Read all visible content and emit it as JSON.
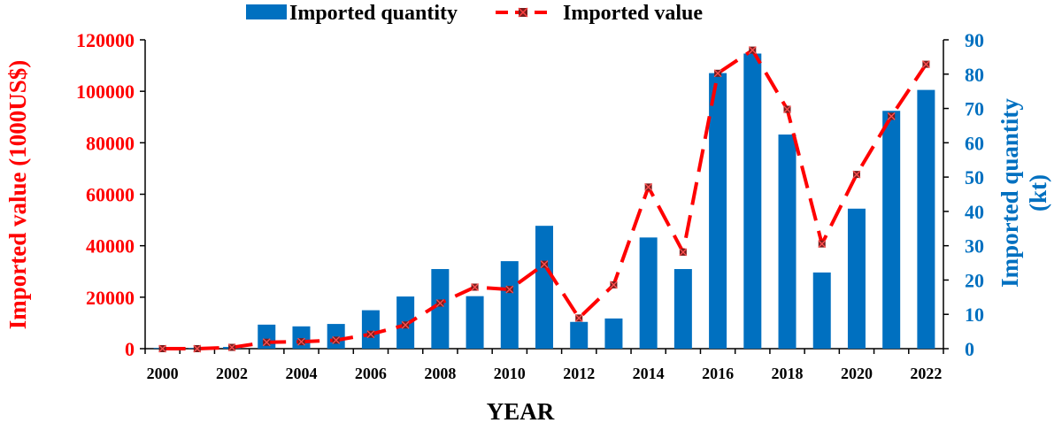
{
  "chart_data": {
    "type": "bar+line",
    "title": "",
    "xlabel": "YEAR",
    "ylabel_left": "Imported value (1000US$)",
    "ylabel_right_lines": [
      "Imported quantity",
      "(kt)"
    ],
    "x": [
      2000,
      2001,
      2002,
      2003,
      2004,
      2005,
      2006,
      2007,
      2008,
      2009,
      2010,
      2011,
      2012,
      2013,
      2014,
      2015,
      2016,
      2017,
      2018,
      2019,
      2020,
      2021,
      2022
    ],
    "x_tick_labels": [
      "2000",
      "2002",
      "2004",
      "2006",
      "2008",
      "2010",
      "2012",
      "2014",
      "2016",
      "2018",
      "2020",
      "2022"
    ],
    "ylim_left": [
      0,
      120000
    ],
    "yticks_left": [
      "0",
      "20000",
      "40000",
      "60000",
      "80000",
      "100000",
      "120000"
    ],
    "ylim_right": [
      0,
      90
    ],
    "yticks_right": [
      "0",
      "10",
      "20",
      "30",
      "40",
      "50",
      "60",
      "70",
      "80",
      "90"
    ],
    "grid": false,
    "legend_position": "top-center",
    "series": [
      {
        "name": "Imported quantity",
        "kind": "bar",
        "axis": "right",
        "color": "#0070c0",
        "values": [
          0.2,
          0.2,
          0.5,
          7.0,
          6.5,
          7.2,
          11.2,
          15.2,
          23.2,
          15.3,
          25.5,
          35.8,
          7.8,
          8.8,
          32.4,
          23.2,
          80.3,
          86.0,
          62.4,
          22.2,
          40.8,
          69.3,
          75.4
        ]
      },
      {
        "name": "Imported value",
        "kind": "line",
        "axis": "left",
        "color": "#ff0000",
        "marker_color": "#7b1c1c",
        "values": [
          0,
          0,
          500,
          2500,
          2700,
          3300,
          5600,
          9200,
          17700,
          23900,
          23000,
          32800,
          11900,
          24800,
          62800,
          37500,
          107000,
          116000,
          93000,
          40700,
          67700,
          90300,
          110500
        ]
      }
    ]
  }
}
